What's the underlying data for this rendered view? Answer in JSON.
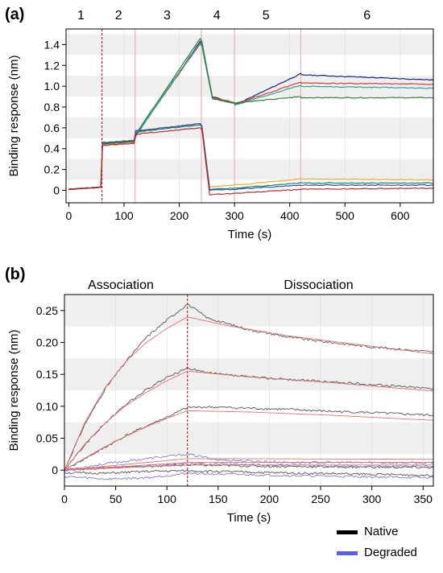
{
  "colors": {
    "band": "#efefef",
    "axis": "#000000",
    "grid": "#dcdcdc",
    "phase_line": "#e8b4b4",
    "dashed_line": "#c62828",
    "fit": "#e57373",
    "native": "#000000",
    "degraded": "#5a5cf2"
  },
  "chart_data": [
    {
      "panel_label": "(a)",
      "type": "line",
      "xlabel": "Time (s)",
      "ylabel": "Binding response (nm)",
      "xlim": [
        -5,
        660
      ],
      "ylim": [
        -0.12,
        1.55
      ],
      "xticks": [
        0,
        100,
        200,
        300,
        400,
        500,
        600
      ],
      "yticks": [
        0,
        0.2,
        0.4,
        0.6,
        0.8,
        1.0,
        1.2,
        1.4
      ],
      "ytick_labels": [
        "0",
        "0.2",
        "0.4",
        "0.6",
        "0.8",
        "1.0",
        "1.2",
        "1.4"
      ],
      "grid": "shaded horizontal bands",
      "step_labels": [
        "1",
        "2",
        "3",
        "4",
        "5",
        "6"
      ],
      "step_label_x": [
        22,
        90,
        178,
        268,
        357,
        540
      ],
      "step_boundaries": [
        60,
        120,
        240,
        300,
        420
      ],
      "dashed_boundary": 60,
      "series": [
        {
          "color": "#1a237e",
          "points": [
            [
              0,
              0.01
            ],
            [
              58,
              0.03
            ],
            [
              61,
              0.44
            ],
            [
              118,
              0.46
            ],
            [
              121,
              0.52
            ],
            [
              238,
              1.43
            ],
            [
              241,
              1.4
            ],
            [
              260,
              0.9
            ],
            [
              300,
              0.84
            ],
            [
              301,
              0.82
            ],
            [
              420,
              1.12
            ],
            [
              421,
              1.11
            ],
            [
              660,
              1.06
            ]
          ]
        },
        {
          "color": "#e53935",
          "points": [
            [
              0,
              0.01
            ],
            [
              58,
              0.03
            ],
            [
              61,
              0.45
            ],
            [
              118,
              0.47
            ],
            [
              121,
              0.53
            ],
            [
              238,
              1.41
            ],
            [
              241,
              1.38
            ],
            [
              260,
              0.89
            ],
            [
              300,
              0.84
            ],
            [
              301,
              0.83
            ],
            [
              420,
              1.04
            ],
            [
              421,
              1.03
            ],
            [
              660,
              1.02
            ]
          ]
        },
        {
          "color": "#26a69a",
          "points": [
            [
              0,
              0.01
            ],
            [
              58,
              0.03
            ],
            [
              61,
              0.45
            ],
            [
              118,
              0.47
            ],
            [
              121,
              0.53
            ],
            [
              238,
              1.42
            ],
            [
              241,
              1.39
            ],
            [
              260,
              0.88
            ],
            [
              300,
              0.83
            ],
            [
              301,
              0.82
            ],
            [
              420,
              1.01
            ],
            [
              421,
              1.0
            ],
            [
              660,
              0.98
            ]
          ]
        },
        {
          "color": "#2e7d32",
          "points": [
            [
              0,
              0.01
            ],
            [
              58,
              0.03
            ],
            [
              61,
              0.46
            ],
            [
              118,
              0.48
            ],
            [
              121,
              0.54
            ],
            [
              238,
              1.46
            ],
            [
              241,
              1.43
            ],
            [
              260,
              0.88
            ],
            [
              300,
              0.84
            ],
            [
              301,
              0.84
            ],
            [
              420,
              0.9
            ],
            [
              421,
              0.89
            ],
            [
              660,
              0.89
            ]
          ]
        },
        {
          "color": "#f9a825",
          "points": [
            [
              0,
              0.01
            ],
            [
              58,
              0.03
            ],
            [
              61,
              0.44
            ],
            [
              118,
              0.46
            ],
            [
              121,
              0.57
            ],
            [
              238,
              0.64
            ],
            [
              241,
              0.62
            ],
            [
              255,
              0.03
            ],
            [
              300,
              0.05
            ],
            [
              420,
              0.11
            ],
            [
              660,
              0.1
            ]
          ]
        },
        {
          "color": "#00897b",
          "points": [
            [
              0,
              0.01
            ],
            [
              58,
              0.03
            ],
            [
              61,
              0.45
            ],
            [
              118,
              0.47
            ],
            [
              121,
              0.56
            ],
            [
              238,
              0.63
            ],
            [
              241,
              0.61
            ],
            [
              255,
              0.01
            ],
            [
              300,
              0.02
            ],
            [
              420,
              0.07
            ],
            [
              660,
              0.07
            ]
          ]
        },
        {
          "color": "#3949ab",
          "points": [
            [
              0,
              0.01
            ],
            [
              58,
              0.03
            ],
            [
              61,
              0.45
            ],
            [
              118,
              0.47
            ],
            [
              121,
              0.57
            ],
            [
              238,
              0.64
            ],
            [
              241,
              0.62
            ],
            [
              255,
              0.0
            ],
            [
              300,
              0.01
            ],
            [
              420,
              0.05
            ],
            [
              660,
              0.05
            ]
          ]
        },
        {
          "color": "#c62828",
          "points": [
            [
              0,
              0.01
            ],
            [
              58,
              0.03
            ],
            [
              61,
              0.43
            ],
            [
              118,
              0.45
            ],
            [
              121,
              0.54
            ],
            [
              238,
              0.6
            ],
            [
              241,
              0.58
            ],
            [
              255,
              -0.04
            ],
            [
              300,
              -0.03
            ],
            [
              420,
              0.01
            ],
            [
              660,
              0.02
            ]
          ]
        }
      ]
    },
    {
      "panel_label": "(b)",
      "type": "line",
      "xlabel": "Time (s)",
      "ylabel": "Binding response (nm)",
      "xlim": [
        0,
        360
      ],
      "ylim": [
        -0.025,
        0.275
      ],
      "xticks": [
        0,
        50,
        100,
        150,
        200,
        250,
        300,
        350
      ],
      "yticks": [
        0,
        0.05,
        0.1,
        0.15,
        0.2,
        0.25
      ],
      "ytick_labels": [
        "0",
        "0.05",
        "0.10",
        "0.15",
        "0.20",
        "0.25"
      ],
      "grid": "shaded horizontal bands",
      "phase_labels": [
        "Association",
        "Dissociation"
      ],
      "phase_label_x": [
        55,
        248
      ],
      "dashed_boundary": 120,
      "legend": {
        "placement": "bottom-right",
        "entries": [
          "Native",
          "Degraded"
        ]
      },
      "native_series": [
        {
          "points": [
            [
              0,
              0
            ],
            [
              20,
              0.072
            ],
            [
              40,
              0.128
            ],
            [
              60,
              0.17
            ],
            [
              80,
              0.208
            ],
            [
              100,
              0.235
            ],
            [
              120,
              0.26
            ],
            [
              140,
              0.238
            ],
            [
              180,
              0.22
            ],
            [
              220,
              0.208
            ],
            [
              260,
              0.2
            ],
            [
              300,
              0.193
            ],
            [
              360,
              0.185
            ]
          ]
        },
        {
          "points": [
            [
              0,
              0
            ],
            [
              20,
              0.04
            ],
            [
              40,
              0.074
            ],
            [
              60,
              0.103
            ],
            [
              80,
              0.126
            ],
            [
              100,
              0.145
            ],
            [
              120,
              0.16
            ],
            [
              140,
              0.152
            ],
            [
              180,
              0.146
            ],
            [
              220,
              0.142
            ],
            [
              260,
              0.138
            ],
            [
              300,
              0.134
            ],
            [
              360,
              0.128
            ]
          ]
        },
        {
          "points": [
            [
              0,
              0
            ],
            [
              20,
              0.018
            ],
            [
              40,
              0.036
            ],
            [
              60,
              0.054
            ],
            [
              80,
              0.069
            ],
            [
              100,
              0.083
            ],
            [
              120,
              0.098
            ],
            [
              140,
              0.099
            ],
            [
              180,
              0.097
            ],
            [
              220,
              0.095
            ],
            [
              260,
              0.092
            ],
            [
              300,
              0.09
            ],
            [
              360,
              0.086
            ]
          ]
        },
        {
          "points": [
            [
              0,
              0
            ],
            [
              20,
              0.002
            ],
            [
              60,
              0.005
            ],
            [
              120,
              0.008
            ],
            [
              200,
              0.006
            ],
            [
              280,
              0.005
            ],
            [
              360,
              0.004
            ]
          ]
        },
        {
          "points": [
            [
              0,
              -0.004
            ],
            [
              40,
              -0.005
            ],
            [
              80,
              -0.002
            ],
            [
              120,
              -0.001
            ],
            [
              200,
              -0.004
            ],
            [
              280,
              -0.006
            ],
            [
              360,
              -0.008
            ]
          ]
        }
      ],
      "degraded_series": [
        {
          "points": [
            [
              0,
              0
            ],
            [
              40,
              0.01
            ],
            [
              80,
              0.018
            ],
            [
              120,
              0.025
            ],
            [
              150,
              0.016
            ],
            [
              220,
              0.012
            ],
            [
              300,
              0.012
            ],
            [
              360,
              0.011
            ]
          ]
        },
        {
          "points": [
            [
              0,
              0
            ],
            [
              40,
              0.004
            ],
            [
              80,
              0.007
            ],
            [
              120,
              0.01
            ],
            [
              200,
              0.008
            ],
            [
              280,
              0.006
            ],
            [
              360,
              0.006
            ]
          ]
        },
        {
          "points": [
            [
              0,
              -0.01
            ],
            [
              40,
              -0.014
            ],
            [
              80,
              -0.012
            ],
            [
              120,
              -0.005
            ],
            [
              200,
              -0.008
            ],
            [
              280,
              -0.01
            ],
            [
              360,
              -0.012
            ]
          ]
        }
      ],
      "fit_series": [
        {
          "points": [
            [
              0,
              0
            ],
            [
              20,
              0.075
            ],
            [
              40,
              0.13
            ],
            [
              60,
              0.17
            ],
            [
              80,
              0.2
            ],
            [
              100,
              0.222
            ],
            [
              120,
              0.24
            ],
            [
              160,
              0.226
            ],
            [
              220,
              0.21
            ],
            [
              280,
              0.198
            ],
            [
              360,
              0.182
            ]
          ]
        },
        {
          "points": [
            [
              0,
              0
            ],
            [
              20,
              0.041
            ],
            [
              40,
              0.074
            ],
            [
              60,
              0.101
            ],
            [
              80,
              0.122
            ],
            [
              100,
              0.14
            ],
            [
              120,
              0.155
            ],
            [
              180,
              0.146
            ],
            [
              260,
              0.137
            ],
            [
              360,
              0.124
            ]
          ]
        },
        {
          "points": [
            [
              0,
              0
            ],
            [
              20,
              0.019
            ],
            [
              40,
              0.037
            ],
            [
              60,
              0.053
            ],
            [
              80,
              0.068
            ],
            [
              100,
              0.081
            ],
            [
              120,
              0.093
            ],
            [
              180,
              0.091
            ],
            [
              260,
              0.086
            ],
            [
              360,
              0.078
            ]
          ]
        },
        {
          "points": [
            [
              0,
              0
            ],
            [
              120,
              0.018
            ],
            [
              360,
              0.017
            ]
          ]
        },
        {
          "points": [
            [
              0,
              0
            ],
            [
              120,
              0.012
            ],
            [
              360,
              0.012
            ]
          ]
        },
        {
          "points": [
            [
              0,
              0
            ],
            [
              120,
              0.008
            ],
            [
              360,
              0.008
            ]
          ]
        }
      ]
    }
  ]
}
